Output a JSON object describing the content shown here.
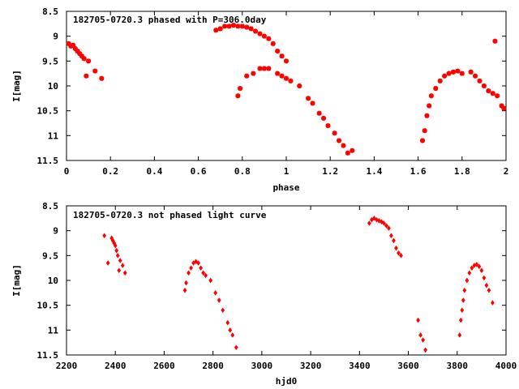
{
  "chart_data": [
    {
      "type": "scatter",
      "title": "182705-0720.3 phased with P=306.0day",
      "xlabel": "phase",
      "ylabel": "I[mag]",
      "xlim": [
        0,
        2
      ],
      "ylim": [
        8.5,
        11.5
      ],
      "y_inverted": true,
      "xticks": [
        "0",
        "0.2",
        "0.4",
        "0.6",
        "0.8",
        "1",
        "1.2",
        "1.4",
        "1.6",
        "1.8",
        "2"
      ],
      "yticks": [
        "8.5",
        "9",
        "9.5",
        "10",
        "10.5",
        "11",
        "11.5"
      ],
      "grid": false,
      "legend": "none",
      "marker_color": "#ff0000",
      "series": [
        {
          "x": [
            0.01,
            0.02,
            0.03,
            0.04,
            0.05,
            0.06,
            0.07,
            0.08,
            0.09,
            0.1,
            0.13,
            0.16,
            0.68,
            0.7,
            0.72,
            0.74,
            0.76,
            0.78,
            0.8,
            0.82,
            0.84,
            0.86,
            0.88,
            0.9,
            0.92,
            0.94,
            0.96,
            0.98,
            1.0,
            0.78,
            0.79,
            0.82,
            0.85,
            0.88,
            0.9,
            0.92,
            0.96,
            0.98,
            1.0,
            1.02,
            1.06,
            1.1,
            1.12,
            1.15,
            1.17,
            1.19,
            1.22,
            1.24,
            1.26,
            1.28,
            1.3,
            1.62,
            1.63,
            1.64,
            1.65,
            1.66,
            1.68,
            1.7,
            1.72,
            1.74,
            1.76,
            1.78,
            1.8,
            1.84,
            1.86,
            1.88,
            1.9,
            1.92,
            1.94,
            1.96,
            1.98,
            1.99,
            1.95
          ],
          "y": [
            9.15,
            9.2,
            9.18,
            9.25,
            9.3,
            9.35,
            9.4,
            9.45,
            9.8,
            9.5,
            9.7,
            9.85,
            8.88,
            8.85,
            8.8,
            8.8,
            8.78,
            8.8,
            8.8,
            8.82,
            8.85,
            8.9,
            8.95,
            9.0,
            9.05,
            9.15,
            9.3,
            9.4,
            9.5,
            10.2,
            10.05,
            9.8,
            9.75,
            9.65,
            9.65,
            9.65,
            9.75,
            9.8,
            9.85,
            9.9,
            10.0,
            10.25,
            10.35,
            10.55,
            10.65,
            10.8,
            10.95,
            11.1,
            11.2,
            11.35,
            11.3,
            11.1,
            10.9,
            10.6,
            10.4,
            10.2,
            10.05,
            9.9,
            9.8,
            9.75,
            9.72,
            9.7,
            9.75,
            9.72,
            9.8,
            9.9,
            10.0,
            10.1,
            10.15,
            10.2,
            10.4,
            10.45,
            9.1
          ]
        }
      ]
    },
    {
      "type": "scatter",
      "title": "182705-0720.3 not phased light curve",
      "xlabel": "hjd0",
      "ylabel": "I[mag]",
      "xlim": [
        2200,
        4000
      ],
      "ylim": [
        8.5,
        11.5
      ],
      "y_inverted": true,
      "xticks": [
        "2200",
        "2400",
        "2600",
        "2800",
        "3000",
        "3200",
        "3400",
        "3600",
        "3800",
        "4000"
      ],
      "yticks": [
        "8.5",
        "9",
        "9.5",
        "10",
        "10.5",
        "11",
        "11.5"
      ],
      "grid": false,
      "legend": "none",
      "marker_color": "#ff0000",
      "series": [
        {
          "x": [
            2355,
            2370,
            2385,
            2390,
            2395,
            2400,
            2405,
            2410,
            2415,
            2420,
            2430,
            2440,
            2685,
            2690,
            2700,
            2710,
            2720,
            2730,
            2740,
            2750,
            2760,
            2770,
            2790,
            2810,
            2825,
            2840,
            2860,
            2870,
            2880,
            2895,
            3440,
            3450,
            3460,
            3470,
            3480,
            3490,
            3500,
            3510,
            3520,
            3530,
            3540,
            3550,
            3560,
            3570,
            3640,
            3650,
            3660,
            3670,
            3810,
            3815,
            3820,
            3825,
            3830,
            3840,
            3850,
            3860,
            3870,
            3880,
            3890,
            3900,
            3910,
            3920,
            3930,
            3945
          ],
          "y": [
            9.1,
            9.65,
            9.15,
            9.2,
            9.25,
            9.3,
            9.4,
            9.5,
            9.8,
            9.6,
            9.7,
            9.85,
            10.2,
            10.05,
            9.85,
            9.75,
            9.65,
            9.62,
            9.65,
            9.75,
            9.85,
            9.9,
            10.0,
            10.25,
            10.4,
            10.6,
            10.85,
            11.0,
            11.1,
            11.35,
            8.85,
            8.78,
            8.75,
            8.78,
            8.8,
            8.82,
            8.85,
            8.9,
            8.95,
            9.1,
            9.2,
            9.35,
            9.45,
            9.5,
            10.8,
            11.1,
            11.2,
            11.4,
            11.1,
            10.8,
            10.6,
            10.4,
            10.2,
            10.0,
            9.85,
            9.75,
            9.7,
            9.68,
            9.72,
            9.8,
            9.95,
            10.1,
            10.2,
            10.45
          ]
        }
      ]
    }
  ]
}
